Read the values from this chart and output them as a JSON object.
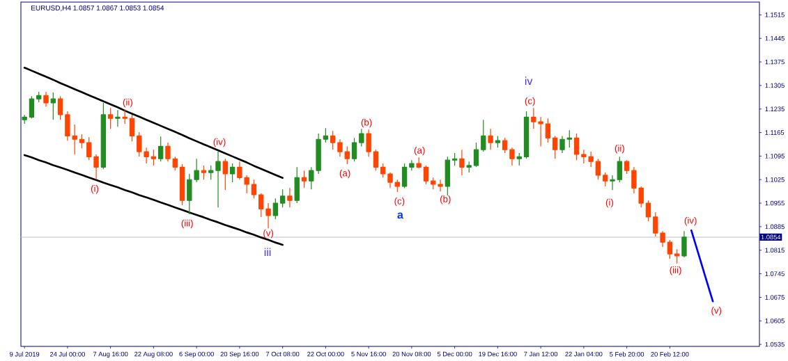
{
  "chart_data": {
    "type": "candlestick",
    "title": "EURUSD,H4 1.0857 1.0867 1.0853 1.0854",
    "categories": [
      "9 Jul 2019",
      null,
      null,
      null,
      null,
      null,
      "24 Jul 00:00",
      null,
      null,
      null,
      null,
      null,
      "7 Aug 16:00",
      null,
      null,
      null,
      null,
      null,
      "22 Aug 08:00",
      null,
      null,
      null,
      null,
      null,
      "6 Sep 00:00",
      null,
      null,
      null,
      null,
      null,
      "20 Sep 16:00",
      null,
      null,
      null,
      null,
      null,
      "7 Oct 08:00",
      null,
      null,
      null,
      null,
      null,
      "22 Oct 00:00",
      null,
      null,
      null,
      null,
      null,
      "5 Nov 16:00",
      null,
      null,
      null,
      null,
      null,
      "20 Nov 08:00",
      null,
      null,
      null,
      null,
      null,
      "5 Dec 00:00",
      null,
      null,
      null,
      null,
      null,
      "19 Dec 16:00",
      null,
      null,
      null,
      null,
      null,
      "7 Jan 12:00",
      null,
      null,
      null,
      null,
      null,
      "22 Jan 04:00",
      null,
      null,
      null,
      null,
      null,
      "5 Feb 20:00",
      null,
      null,
      null,
      null,
      null,
      "20 Feb 12:00",
      null,
      null,
      null,
      null,
      null,
      null,
      null,
      null,
      null,
      null,
      null,
      null
    ],
    "ohlc": [
      [
        1.1203,
        1.1218,
        1.1191,
        1.1211
      ],
      [
        1.1211,
        1.1273,
        1.1207,
        1.1265
      ],
      [
        1.1265,
        1.1286,
        1.1255,
        1.1275
      ],
      [
        1.1275,
        1.1286,
        1.1242,
        1.1253
      ],
      [
        1.1253,
        1.1284,
        1.1203,
        1.1265
      ],
      [
        1.1265,
        1.1273,
        1.1203,
        1.1218
      ],
      [
        1.1218,
        1.1228,
        1.1141,
        1.1155
      ],
      [
        1.1155,
        1.1189,
        1.11,
        1.1145
      ],
      [
        1.1145,
        1.116,
        1.1118,
        1.1135
      ],
      [
        1.1135,
        1.1151,
        1.1083,
        1.1093
      ],
      [
        1.1093,
        1.11,
        1.1025,
        1.1062
      ],
      [
        1.1062,
        1.1253,
        1.1056,
        1.1218
      ],
      [
        1.1218,
        1.1238,
        1.1176,
        1.1207
      ],
      [
        1.1207,
        1.1232,
        1.1182,
        1.1211
      ],
      [
        1.1211,
        1.1234,
        1.1191,
        1.1207
      ],
      [
        1.1207,
        1.1218,
        1.1139,
        1.1155
      ],
      [
        1.1155,
        1.1166,
        1.1093,
        1.1108
      ],
      [
        1.1108,
        1.112,
        1.1073,
        1.1093
      ],
      [
        1.1093,
        1.1114,
        1.1067,
        1.1087
      ],
      [
        1.1087,
        1.1153,
        1.1079,
        1.1124
      ],
      [
        1.1124,
        1.1135,
        1.1079,
        1.1087
      ],
      [
        1.1087,
        1.1093,
        1.1052,
        1.1062
      ],
      [
        1.1062,
        1.1071,
        1.0949,
        1.0963
      ],
      [
        1.0963,
        1.1042,
        1.0922,
        1.1025
      ],
      [
        1.1025,
        1.1087,
        1.1017,
        1.1052
      ],
      [
        1.1052,
        1.1067,
        1.1025,
        1.1046
      ],
      [
        1.1046,
        1.1067,
        1.1025,
        1.1052
      ],
      [
        1.1052,
        1.1108,
        1.0942,
        1.1079
      ],
      [
        1.1079,
        1.1087,
        1.0994,
        1.1042
      ],
      [
        1.1042,
        1.1073,
        1.1017,
        1.1062
      ],
      [
        1.1062,
        1.1079,
        1.1025,
        1.1031
      ],
      [
        1.1031,
        1.1038,
        1.0984,
        1.1011
      ],
      [
        1.1011,
        1.1025,
        1.0969,
        1.098
      ],
      [
        1.098,
        1.0984,
        1.0914,
        1.0938
      ],
      [
        1.0938,
        1.0955,
        1.088,
        1.0918
      ],
      [
        1.0918,
        1.0969,
        1.0907,
        1.0955
      ],
      [
        1.0955,
        1.0996,
        1.0942,
        1.0976
      ],
      [
        1.0976,
        1.1,
        1.0942,
        1.0963
      ],
      [
        1.0963,
        1.1062,
        1.0955,
        1.1031
      ],
      [
        1.1031,
        1.1052,
        1.1,
        1.1021
      ],
      [
        1.1021,
        1.1062,
        1.0996,
        1.1052
      ],
      [
        1.1052,
        1.1162,
        1.1042,
        1.1145
      ],
      [
        1.1145,
        1.1178,
        1.1135,
        1.1155
      ],
      [
        1.1155,
        1.117,
        1.1114,
        1.1135
      ],
      [
        1.1135,
        1.1145,
        1.1093,
        1.1108
      ],
      [
        1.1108,
        1.1124,
        1.1071,
        1.1087
      ],
      [
        1.1087,
        1.1149,
        1.1079,
        1.1135
      ],
      [
        1.1135,
        1.1176,
        1.1124,
        1.1162
      ],
      [
        1.1162,
        1.1174,
        1.1093,
        1.1108
      ],
      [
        1.1108,
        1.1114,
        1.1052,
        1.1062
      ],
      [
        1.1062,
        1.1073,
        1.1031,
        1.1042
      ],
      [
        1.1042,
        1.1046,
        1.1,
        1.1017
      ],
      [
        1.1017,
        1.1025,
        1.0988,
        1.1005
      ],
      [
        1.1005,
        1.1073,
        1.1,
        1.1062
      ],
      [
        1.1062,
        1.1083,
        1.1052,
        1.1073
      ],
      [
        1.1073,
        1.1091,
        1.1058,
        1.1062
      ],
      [
        1.1062,
        1.1067,
        1.1011,
        1.1021
      ],
      [
        1.1021,
        1.1031,
        1.0996,
        1.1011
      ],
      [
        1.1011,
        1.1025,
        1.099,
        1.1005
      ],
      [
        1.1005,
        1.1093,
        1.0978,
        1.1083
      ],
      [
        1.1083,
        1.1104,
        1.1067,
        1.1087
      ],
      [
        1.1087,
        1.1114,
        1.1038,
        1.1062
      ],
      [
        1.1062,
        1.1079,
        1.1046,
        1.1067
      ],
      [
        1.1067,
        1.1135,
        1.1062,
        1.1114
      ],
      [
        1.1114,
        1.1203,
        1.1108,
        1.1155
      ],
      [
        1.1155,
        1.1176,
        1.1114,
        1.1135
      ],
      [
        1.1135,
        1.1155,
        1.112,
        1.1141
      ],
      [
        1.1141,
        1.1149,
        1.1104,
        1.1114
      ],
      [
        1.1114,
        1.112,
        1.1067,
        1.1087
      ],
      [
        1.1087,
        1.1104,
        1.1067,
        1.1093
      ],
      [
        1.1093,
        1.1228,
        1.1087,
        1.1211
      ],
      [
        1.1211,
        1.1238,
        1.1176,
        1.1197
      ],
      [
        1.1197,
        1.1211,
        1.1124,
        1.1191
      ],
      [
        1.1191,
        1.1207,
        1.1135,
        1.1149
      ],
      [
        1.1149,
        1.1155,
        1.1087,
        1.1114
      ],
      [
        1.1114,
        1.1155,
        1.1104,
        1.1145
      ],
      [
        1.1145,
        1.1172,
        1.112,
        1.1149
      ],
      [
        1.1149,
        1.1162,
        1.1083,
        1.11
      ],
      [
        1.11,
        1.1114,
        1.1073,
        1.1093
      ],
      [
        1.1093,
        1.1108,
        1.1062,
        1.1079
      ],
      [
        1.1079,
        1.1087,
        1.1025,
        1.1038
      ],
      [
        1.1038,
        1.1046,
        1.1005,
        1.1021
      ],
      [
        1.1021,
        1.1038,
        1.0994,
        1.1025
      ],
      [
        1.1025,
        1.1093,
        1.1017,
        1.1079
      ],
      [
        1.1079,
        1.1083,
        1.1042,
        1.1052
      ],
      [
        1.1052,
        1.1062,
        1.0984,
        1.1
      ],
      [
        1.1,
        1.1005,
        1.0942,
        1.0955
      ],
      [
        1.0955,
        1.0963,
        1.0901,
        1.0914
      ],
      [
        1.0914,
        1.0928,
        1.0856,
        1.0866
      ],
      [
        1.0866,
        1.0872,
        1.0825,
        1.0839
      ],
      [
        1.0839,
        1.0845,
        1.0789,
        1.0804
      ],
      [
        1.0804,
        1.0818,
        1.0775,
        1.0798
      ],
      [
        1.0798,
        1.0872,
        1.0794,
        1.0854
      ],
      null,
      null,
      null,
      null,
      null,
      null,
      null,
      null,
      null,
      null
    ],
    "colors": [
      "#228b22",
      "#228b22",
      "#228b22",
      "#ff4500",
      "#228b22",
      "#ff4500",
      "#ff4500",
      "#ff4500",
      "#ff4500",
      "#ff4500",
      "#ff4500",
      "#228b22",
      "#ff4500",
      "#228b22",
      "#ff4500",
      "#ff4500",
      "#ff4500",
      "#ff4500",
      "#ff4500",
      "#228b22",
      "#ff4500",
      "#ff4500",
      "#ff4500",
      "#228b22",
      "#228b22",
      "#ff4500",
      "#228b22",
      "#228b22",
      "#ff4500",
      "#228b22",
      "#ff4500",
      "#ff4500",
      "#ff4500",
      "#ff4500",
      "#ff4500",
      "#228b22",
      "#228b22",
      "#ff4500",
      "#228b22",
      "#ff4500",
      "#228b22",
      "#228b22",
      "#228b22",
      "#ff4500",
      "#ff4500",
      "#ff4500",
      "#228b22",
      "#228b22",
      "#ff4500",
      "#ff4500",
      "#ff4500",
      "#ff4500",
      "#ff4500",
      "#228b22",
      "#228b22",
      "#ff4500",
      "#ff4500",
      "#ff4500",
      "#ff4500",
      "#228b22",
      "#228b22",
      "#ff4500",
      "#228b22",
      "#228b22",
      "#228b22",
      "#ff4500",
      "#228b22",
      "#ff4500",
      "#ff4500",
      "#228b22",
      "#228b22",
      "#ff4500",
      "#ff4500",
      "#ff4500",
      "#ff4500",
      "#228b22",
      "#228b22",
      "#ff4500",
      "#ff4500",
      "#ff4500",
      "#ff4500",
      "#ff4500",
      "#228b22",
      "#228b22",
      "#ff4500",
      "#ff4500",
      "#ff4500",
      "#ff4500",
      "#ff4500",
      "#ff4500",
      "#ff4500",
      "#ff4500",
      "#228b22",
      null,
      null,
      null,
      null,
      null,
      null,
      null,
      null,
      null,
      null
    ],
    "series": [
      {
        "type": "line",
        "color": "#000000",
        "values": [
          1.1358,
          1.1349,
          1.134,
          1.1331,
          1.1322,
          1.1312,
          1.1303,
          1.1294,
          1.1285,
          1.1276,
          1.1267,
          1.1258,
          1.1249,
          1.124,
          1.123,
          1.1221,
          1.1212,
          1.1203,
          1.1194,
          1.1185,
          1.1176,
          1.1167,
          1.1158,
          1.1148,
          1.1139,
          1.113,
          1.1121,
          1.1112,
          1.1103,
          1.1094,
          1.1085,
          1.1076,
          1.1066,
          1.1057,
          1.1048,
          1.1039,
          1.103,
          null,
          null,
          null,
          null,
          null,
          null,
          null,
          null,
          null,
          null,
          null,
          null,
          null,
          null,
          null,
          null,
          null,
          null,
          null,
          null,
          null,
          null,
          null,
          null,
          null,
          null,
          null,
          null,
          null,
          null,
          null,
          null,
          null,
          null,
          null,
          null,
          null,
          null,
          null,
          null,
          null,
          null,
          null,
          null,
          null,
          null,
          null,
          null,
          null,
          null,
          null,
          null,
          null,
          null,
          null,
          null,
          null,
          null,
          null,
          null,
          null,
          null,
          null,
          null,
          null,
          null
        ]
      },
      {
        "type": "line",
        "color": "#000000",
        "values": [
          1.1098,
          1.1091,
          1.1083,
          1.1076,
          1.1068,
          1.1061,
          1.1054,
          1.1046,
          1.1039,
          1.1031,
          1.1024,
          1.1016,
          1.1009,
          1.1002,
          1.0994,
          1.0987,
          1.0979,
          1.0972,
          1.0965,
          1.0957,
          1.095,
          1.0942,
          1.0935,
          1.0927,
          1.092,
          1.0913,
          1.0905,
          1.0898,
          1.089,
          1.0883,
          1.0876,
          1.0868,
          1.0861,
          1.0853,
          1.0846,
          1.0838,
          1.0831,
          null,
          null,
          null,
          null,
          null,
          null,
          null,
          null,
          null,
          null,
          null,
          null,
          null,
          null,
          null,
          null,
          null,
          null,
          null,
          null,
          null,
          null,
          null,
          null,
          null,
          null,
          null,
          null,
          null,
          null,
          null,
          null,
          null,
          null,
          null,
          null,
          null,
          null,
          null,
          null,
          null,
          null,
          null,
          null,
          null,
          null,
          null,
          null,
          null,
          null,
          null,
          null,
          null,
          null,
          null,
          null,
          null,
          null,
          null,
          null,
          null,
          null,
          null,
          null,
          null,
          null
        ]
      },
      {
        "type": "line",
        "color": "#0000ff",
        "values": [
          null,
          null,
          null,
          null,
          null,
          null,
          null,
          null,
          null,
          null,
          null,
          null,
          null,
          null,
          null,
          null,
          null,
          null,
          null,
          null,
          null,
          null,
          null,
          null,
          null,
          null,
          null,
          null,
          null,
          null,
          null,
          null,
          null,
          null,
          null,
          null,
          null,
          null,
          null,
          null,
          null,
          null,
          null,
          null,
          null,
          null,
          null,
          null,
          null,
          null,
          null,
          null,
          null,
          null,
          null,
          null,
          null,
          null,
          null,
          null,
          null,
          null,
          null,
          null,
          null,
          null,
          null,
          null,
          null,
          null,
          null,
          null,
          null,
          null,
          null,
          null,
          null,
          null,
          null,
          null,
          null,
          null,
          null,
          null,
          null,
          null,
          null,
          null,
          null,
          null,
          null,
          null,
          null,
          1.0874,
          1.0804,
          1.0733,
          1.0663,
          null,
          null,
          null,
          null,
          null,
          null
        ]
      }
    ],
    "ylim": [
      1.0529,
      1.1553
    ],
    "yticks": [
      1.0535,
      1.0605,
      1.0675,
      1.0745,
      1.0815,
      1.0885,
      1.0955,
      1.1025,
      1.1095,
      1.1165,
      1.1235,
      1.1305,
      1.1375,
      1.1445,
      1.1515
    ],
    "ref_lines": [
      {
        "axis": "y",
        "value": 1.0854,
        "label": "1.0854",
        "color": "#c0c0c0"
      }
    ],
    "annotations": [
      "(i)",
      "(ii)",
      "(iii)",
      "(iv)",
      "(v)",
      "iii",
      "(a)",
      "(b)",
      "(c)",
      "a",
      "(a)",
      "(b)",
      "(c)",
      "iv",
      "(i)",
      "(ii)",
      "(iii)",
      "(iv)",
      "(v)"
    ]
  }
}
